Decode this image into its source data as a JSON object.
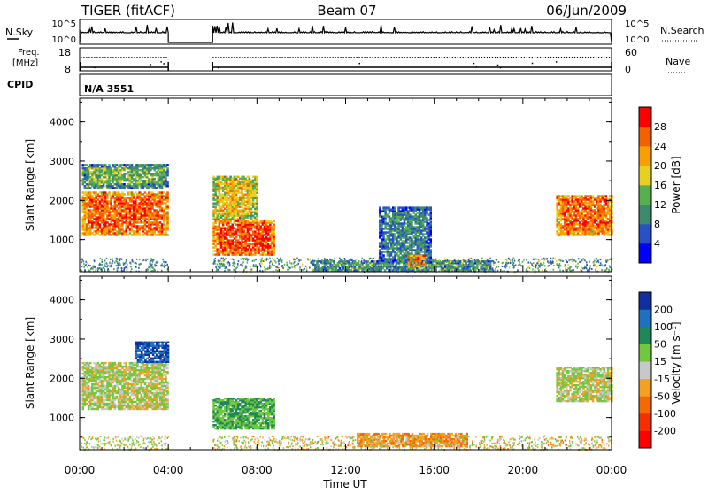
{
  "header": {
    "station": "TIGER (fitACF)",
    "beam": "Beam 07",
    "date": "06/Jun/2009"
  },
  "nsky": {
    "label": "N.Sky",
    "ticks": [
      "10^5",
      "10^0"
    ],
    "right_label": "N.Search",
    "right_ticks": [
      "10^5",
      "10^0"
    ]
  },
  "freq": {
    "label_line1": "Freq.",
    "label_line2": "[MHz]",
    "ticks": [
      "18",
      "8"
    ],
    "right_label": "Nave",
    "right_ticks": [
      "60",
      "0"
    ]
  },
  "cpid": {
    "label": "CPID",
    "value": "N/A 3551"
  },
  "x_axis": {
    "title": "Time UT",
    "tick_labels": [
      "00:00",
      "04:00",
      "08:00",
      "12:00",
      "16:00",
      "20:00",
      "00:00"
    ],
    "tick_values": [
      0,
      4,
      8,
      12,
      16,
      20,
      24
    ]
  },
  "power_panel": {
    "ylabel": "Slant Range [km]",
    "y_tick_labels": [
      "1000",
      "2000",
      "3000",
      "4000"
    ],
    "colorbar_label": "Power [dB]",
    "colorbar_ticks": [
      "4",
      "8",
      "12",
      "16",
      "20",
      "24",
      "28"
    ],
    "colors": [
      "#0000ff",
      "#2850c8",
      "#3d8a6e",
      "#56b050",
      "#e8d020",
      "#f7a000",
      "#f56000",
      "#ff0000"
    ]
  },
  "velocity_panel": {
    "ylabel": "Slant Range [km]",
    "y_tick_labels": [
      "1000",
      "2000",
      "3000",
      "4000"
    ],
    "colorbar_label": "Velocity [m s⁻¹]",
    "colorbar_ticks": [
      "200",
      "100",
      "50",
      "15",
      "-15",
      "-50",
      "-100",
      "-200"
    ],
    "colors": [
      "#1030a0",
      "#2070c0",
      "#208858",
      "#70c840",
      "#c8c8c8",
      "#f5a020",
      "#f56a00",
      "#f53000",
      "#ff0000"
    ]
  },
  "chart_data": [
    {
      "type": "heatmap",
      "title": "Power",
      "xlabel": "Time UT",
      "ylabel": "Slant Range [km]",
      "xlim": [
        0,
        24
      ],
      "ylim": [
        180,
        4600
      ],
      "colorbar": {
        "label": "Power [dB]",
        "range": [
          0,
          32
        ]
      },
      "regions": [
        {
          "t": [
            0.1,
            4.0
          ],
          "r": [
            1100,
            2200
          ],
          "value": 26
        },
        {
          "t": [
            0.1,
            4.0
          ],
          "r": [
            2300,
            2900
          ],
          "value": 14
        },
        {
          "t": [
            6.0,
            8.8
          ],
          "r": [
            600,
            1500
          ],
          "value": 28
        },
        {
          "t": [
            6.0,
            8.0
          ],
          "r": [
            1500,
            2600
          ],
          "value": 20
        },
        {
          "t": [
            10.5,
            18.5
          ],
          "r": [
            200,
            450
          ],
          "value": 14
        },
        {
          "t": [
            13.5,
            15.8
          ],
          "r": [
            400,
            1800
          ],
          "value": 10
        },
        {
          "t": [
            14.8,
            15.5
          ],
          "r": [
            300,
            600
          ],
          "value": 28
        },
        {
          "t": [
            21.5,
            24.0
          ],
          "r": [
            1100,
            2100
          ],
          "value": 26
        }
      ]
    },
    {
      "type": "heatmap",
      "title": "Velocity",
      "xlabel": "Time UT",
      "ylabel": "Slant Range [km]",
      "xlim": [
        0,
        24
      ],
      "ylim": [
        180,
        4600
      ],
      "colorbar": {
        "label": "Velocity [m s-1]",
        "range": [
          -200,
          200
        ]
      },
      "regions": [
        {
          "t": [
            0.1,
            4.0
          ],
          "r": [
            1200,
            2400
          ],
          "value": 0
        },
        {
          "t": [
            2.5,
            4.0
          ],
          "r": [
            2400,
            2900
          ],
          "value": 150
        },
        {
          "t": [
            6.0,
            8.8
          ],
          "r": [
            700,
            1500
          ],
          "value": 30
        },
        {
          "t": [
            12.5,
            17.5
          ],
          "r": [
            250,
            600
          ],
          "value": -40
        },
        {
          "t": [
            21.5,
            24.0
          ],
          "r": [
            1400,
            2300
          ],
          "value": 0
        }
      ]
    }
  ]
}
